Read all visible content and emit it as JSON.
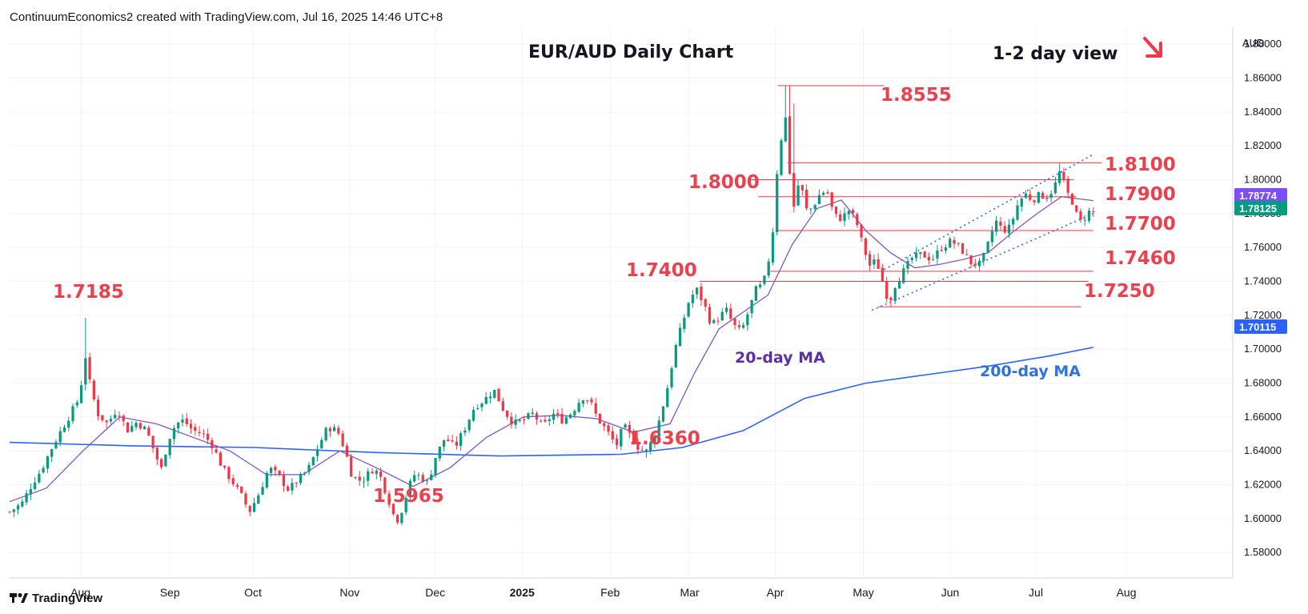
{
  "header": {
    "attribution": "ContinuumEconomics2 created with TradingView.com, Jul 16, 2025 14:46 UTC+8",
    "brand": "TradingView"
  },
  "chart_data": {
    "type": "candlestick",
    "title": "EUR/AUD Daily Chart",
    "view_note": "1-2 day view",
    "view_arrow": "arrow-down-right",
    "currency": "AUD",
    "ylim": [
      1.565,
      1.89
    ],
    "y_ticks": [
      "1.88000",
      "1.86000",
      "1.84000",
      "1.82000",
      "1.80000",
      "1.78000",
      "1.76000",
      "1.74000",
      "1.72000",
      "1.70000",
      "1.68000",
      "1.66000",
      "1.64000",
      "1.62000",
      "1.60000",
      "1.58000"
    ],
    "x_ticks": [
      {
        "label": "Aug",
        "pos": 0.058
      },
      {
        "label": "Sep",
        "pos": 0.131
      },
      {
        "label": "Oct",
        "pos": 0.199
      },
      {
        "label": "Nov",
        "pos": 0.278
      },
      {
        "label": "Dec",
        "pos": 0.348
      },
      {
        "label": "2025",
        "pos": 0.419,
        "bold": true
      },
      {
        "label": "Feb",
        "pos": 0.491
      },
      {
        "label": "Mar",
        "pos": 0.556
      },
      {
        "label": "Apr",
        "pos": 0.626
      },
      {
        "label": "May",
        "pos": 0.698
      },
      {
        "label": "Jun",
        "pos": 0.769
      },
      {
        "label": "Jul",
        "pos": 0.839
      },
      {
        "label": "Aug",
        "pos": 0.913
      }
    ],
    "price_badges": [
      {
        "label": "1.78774",
        "value": 1.7877,
        "color": "#7c4dff"
      },
      {
        "label": "1.78125",
        "value": 1.7812,
        "color": "#089981"
      },
      {
        "label": "1.70115",
        "value": 1.7011,
        "color": "#2962ff"
      }
    ],
    "level_labels": [
      {
        "label": "1.8555",
        "value": 1.8555
      },
      {
        "label": "1.8100",
        "value": 1.81
      },
      {
        "label": "1.8000",
        "value": 1.8
      },
      {
        "label": "1.7900",
        "value": 1.79
      },
      {
        "label": "1.7700",
        "value": 1.77
      },
      {
        "label": "1.7400",
        "value": 1.74
      },
      {
        "label": "1.7460",
        "value": 1.746
      },
      {
        "label": "1.7250",
        "value": 1.725
      },
      {
        "label": "1.7185",
        "value": 1.7185
      },
      {
        "label": "1.6360",
        "value": 1.636
      },
      {
        "label": "1.5965",
        "value": 1.5965
      }
    ],
    "ma_labels": [
      {
        "label": "20-day MA",
        "color": "#5b2fa5"
      },
      {
        "label": "200-day MA",
        "color": "#2f73d8"
      }
    ],
    "colors": {
      "up": "#089981",
      "down": "#f23645",
      "ma20": "#7e57c2",
      "ma200": "#2962ff",
      "levels": "#f23645",
      "channel": "#2962ff"
    },
    "price_path": [
      [
        0.0,
        1.604
      ],
      [
        0.01,
        1.609
      ],
      [
        0.018,
        1.62
      ],
      [
        0.026,
        1.629
      ],
      [
        0.034,
        1.641
      ],
      [
        0.042,
        1.652
      ],
      [
        0.05,
        1.662
      ],
      [
        0.056,
        1.67
      ],
      [
        0.06,
        1.685
      ],
      [
        0.062,
        1.696
      ],
      [
        0.066,
        1.678
      ],
      [
        0.072,
        1.662
      ],
      [
        0.08,
        1.656
      ],
      [
        0.088,
        1.665
      ],
      [
        0.096,
        1.652
      ],
      [
        0.104,
        1.657
      ],
      [
        0.112,
        1.652
      ],
      [
        0.118,
        1.64
      ],
      [
        0.124,
        1.629
      ],
      [
        0.13,
        1.647
      ],
      [
        0.136,
        1.656
      ],
      [
        0.142,
        1.658
      ],
      [
        0.15,
        1.652
      ],
      [
        0.158,
        1.65
      ],
      [
        0.166,
        1.643
      ],
      [
        0.174,
        1.63
      ],
      [
        0.182,
        1.622
      ],
      [
        0.19,
        1.613
      ],
      [
        0.196,
        1.604
      ],
      [
        0.204,
        1.615
      ],
      [
        0.212,
        1.63
      ],
      [
        0.22,
        1.625
      ],
      [
        0.228,
        1.617
      ],
      [
        0.236,
        1.623
      ],
      [
        0.244,
        1.629
      ],
      [
        0.252,
        1.642
      ],
      [
        0.26,
        1.654
      ],
      [
        0.268,
        1.652
      ],
      [
        0.274,
        1.641
      ],
      [
        0.28,
        1.625
      ],
      [
        0.288,
        1.622
      ],
      [
        0.296,
        1.629
      ],
      [
        0.302,
        1.627
      ],
      [
        0.308,
        1.615
      ],
      [
        0.314,
        1.602
      ],
      [
        0.318,
        1.599
      ],
      [
        0.324,
        1.613
      ],
      [
        0.33,
        1.626
      ],
      [
        0.336,
        1.625
      ],
      [
        0.342,
        1.621
      ],
      [
        0.348,
        1.636
      ],
      [
        0.356,
        1.648
      ],
      [
        0.364,
        1.642
      ],
      [
        0.372,
        1.653
      ],
      [
        0.38,
        1.666
      ],
      [
        0.388,
        1.67
      ],
      [
        0.396,
        1.676
      ],
      [
        0.404,
        1.664
      ],
      [
        0.412,
        1.656
      ],
      [
        0.42,
        1.658
      ],
      [
        0.428,
        1.662
      ],
      [
        0.436,
        1.654
      ],
      [
        0.444,
        1.662
      ],
      [
        0.452,
        1.658
      ],
      [
        0.46,
        1.663
      ],
      [
        0.468,
        1.672
      ],
      [
        0.474,
        1.67
      ],
      [
        0.48,
        1.66
      ],
      [
        0.488,
        1.652
      ],
      [
        0.496,
        1.643
      ],
      [
        0.502,
        1.655
      ],
      [
        0.508,
        1.648
      ],
      [
        0.514,
        1.642
      ],
      [
        0.52,
        1.639
      ],
      [
        0.526,
        1.647
      ],
      [
        0.532,
        1.66
      ],
      [
        0.538,
        1.678
      ],
      [
        0.544,
        1.7
      ],
      [
        0.55,
        1.715
      ],
      [
        0.556,
        1.73
      ],
      [
        0.562,
        1.735
      ],
      [
        0.568,
        1.726
      ],
      [
        0.574,
        1.714
      ],
      [
        0.58,
        1.719
      ],
      [
        0.586,
        1.723
      ],
      [
        0.592,
        1.714
      ],
      [
        0.598,
        1.71
      ],
      [
        0.604,
        1.722
      ],
      [
        0.61,
        1.735
      ],
      [
        0.616,
        1.738
      ],
      [
        0.62,
        1.75
      ],
      [
        0.624,
        1.77
      ],
      [
        0.628,
        1.81
      ],
      [
        0.632,
        1.83
      ],
      [
        0.635,
        1.838
      ],
      [
        0.638,
        1.802
      ],
      [
        0.642,
        1.78
      ],
      [
        0.646,
        1.805
      ],
      [
        0.65,
        1.782
      ],
      [
        0.656,
        1.783
      ],
      [
        0.662,
        1.791
      ],
      [
        0.668,
        1.794
      ],
      [
        0.674,
        1.779
      ],
      [
        0.68,
        1.777
      ],
      [
        0.686,
        1.782
      ],
      [
        0.692,
        1.776
      ],
      [
        0.698,
        1.76
      ],
      [
        0.704,
        1.748
      ],
      [
        0.708,
        1.753
      ],
      [
        0.712,
        1.745
      ],
      [
        0.716,
        1.733
      ],
      [
        0.72,
        1.729
      ],
      [
        0.724,
        1.738
      ],
      [
        0.73,
        1.745
      ],
      [
        0.738,
        1.754
      ],
      [
        0.746,
        1.756
      ],
      [
        0.754,
        1.753
      ],
      [
        0.762,
        1.76
      ],
      [
        0.77,
        1.764
      ],
      [
        0.778,
        1.759
      ],
      [
        0.786,
        1.751
      ],
      [
        0.794,
        1.75
      ],
      [
        0.8,
        1.762
      ],
      [
        0.806,
        1.776
      ],
      [
        0.812,
        1.77
      ],
      [
        0.818,
        1.772
      ],
      [
        0.824,
        1.785
      ],
      [
        0.83,
        1.792
      ],
      [
        0.836,
        1.788
      ],
      [
        0.842,
        1.791
      ],
      [
        0.848,
        1.79
      ],
      [
        0.854,
        1.795
      ],
      [
        0.858,
        1.805
      ],
      [
        0.862,
        1.798
      ],
      [
        0.866,
        1.79
      ],
      [
        0.87,
        1.786
      ],
      [
        0.874,
        1.774
      ],
      [
        0.878,
        1.777
      ],
      [
        0.882,
        1.781
      ],
      [
        0.886,
        1.7812
      ]
    ],
    "ma20_path": [
      [
        0.0,
        1.61
      ],
      [
        0.03,
        1.618
      ],
      [
        0.06,
        1.64
      ],
      [
        0.09,
        1.66
      ],
      [
        0.12,
        1.656
      ],
      [
        0.15,
        1.648
      ],
      [
        0.18,
        1.64
      ],
      [
        0.21,
        1.626
      ],
      [
        0.24,
        1.626
      ],
      [
        0.27,
        1.64
      ],
      [
        0.3,
        1.63
      ],
      [
        0.33,
        1.619
      ],
      [
        0.36,
        1.63
      ],
      [
        0.39,
        1.648
      ],
      [
        0.42,
        1.66
      ],
      [
        0.45,
        1.661
      ],
      [
        0.48,
        1.659
      ],
      [
        0.51,
        1.651
      ],
      [
        0.54,
        1.656
      ],
      [
        0.56,
        1.686
      ],
      [
        0.58,
        1.712
      ],
      [
        0.6,
        1.722
      ],
      [
        0.62,
        1.732
      ],
      [
        0.64,
        1.762
      ],
      [
        0.66,
        1.783
      ],
      [
        0.68,
        1.788
      ],
      [
        0.7,
        1.77
      ],
      [
        0.72,
        1.757
      ],
      [
        0.74,
        1.748
      ],
      [
        0.76,
        1.75
      ],
      [
        0.78,
        1.753
      ],
      [
        0.8,
        1.757
      ],
      [
        0.82,
        1.769
      ],
      [
        0.84,
        1.78
      ],
      [
        0.86,
        1.79
      ],
      [
        0.886,
        1.7877
      ]
    ],
    "ma200_path": [
      [
        0.0,
        1.645
      ],
      [
        0.1,
        1.643
      ],
      [
        0.2,
        1.642
      ],
      [
        0.3,
        1.639
      ],
      [
        0.4,
        1.637
      ],
      [
        0.5,
        1.638
      ],
      [
        0.55,
        1.642
      ],
      [
        0.6,
        1.652
      ],
      [
        0.65,
        1.671
      ],
      [
        0.7,
        1.68
      ],
      [
        0.75,
        1.685
      ],
      [
        0.8,
        1.69
      ],
      [
        0.85,
        1.696
      ],
      [
        0.886,
        1.7011
      ]
    ],
    "channel": {
      "upper": [
        [
          0.715,
          1.747
        ],
        [
          0.886,
          1.815
        ]
      ],
      "lower": [
        [
          0.705,
          1.723
        ],
        [
          0.886,
          1.78
        ]
      ]
    }
  }
}
